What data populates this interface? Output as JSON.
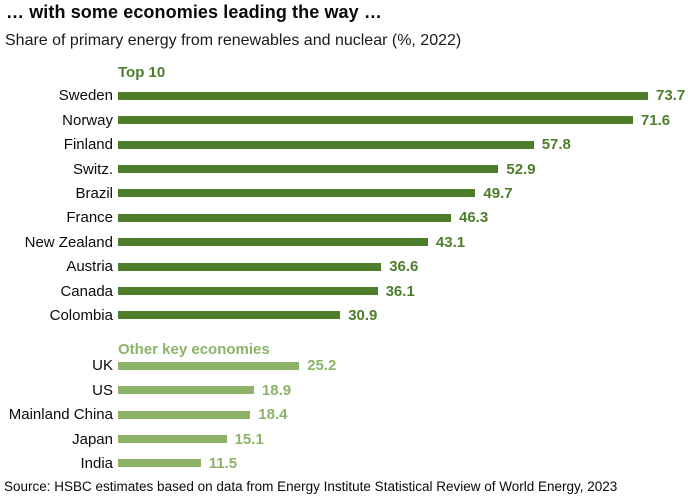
{
  "header": {
    "title": "… with some economies leading the way …",
    "subtitle": "Share of primary energy from renewables and nuclear (%, 2022)"
  },
  "colors": {
    "top10_green": "#4e7d2b",
    "other_green": "#8cb368",
    "text_black": "#0a0a0a"
  },
  "chart_data": {
    "type": "bar",
    "orientation": "horizontal",
    "title": "Share of primary energy from renewables and nuclear (%, 2022)",
    "unit": "%",
    "xlim": [
      0,
      77
    ],
    "grid": false,
    "legend": "none",
    "value_labels": "end-of-bar",
    "groups": [
      {
        "label": "Top 10",
        "color": "#4e7d2b",
        "categories": [
          "Sweden",
          "Norway",
          "Finland",
          "Switz.",
          "Brazil",
          "France",
          "New Zealand",
          "Austria",
          "Canada",
          "Colombia"
        ],
        "values": [
          73.7,
          71.6,
          57.8,
          52.9,
          49.7,
          46.3,
          43.1,
          36.6,
          36.1,
          30.9
        ]
      },
      {
        "label": "Other key economies",
        "color": "#8cb368",
        "categories": [
          "UK",
          "US",
          "Mainland China",
          "Japan",
          "India"
        ],
        "values": [
          25.2,
          18.9,
          18.4,
          15.1,
          11.5
        ]
      }
    ]
  },
  "footer": {
    "source_note": "Source: HSBC estimates based on data from Energy Institute Statistical Review of World Energy, 2023"
  }
}
